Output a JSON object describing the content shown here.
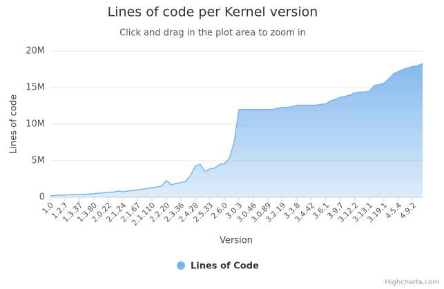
{
  "chart_data": {
    "type": "area",
    "title": "Lines of code per Kernel version",
    "subtitle": "Click and drag in the plot area to zoom in",
    "x_label": "Version",
    "y_label": "Lines of code",
    "credit": "Highcharts.com",
    "categories": [
      "1.0",
      null,
      null,
      "1.2.7",
      null,
      null,
      "1.3.37",
      null,
      null,
      "1.3.80",
      null,
      null,
      "2.0.22",
      null,
      null,
      "2.1.24",
      null,
      null,
      "2.1.67",
      null,
      null,
      "2.1.110",
      null,
      null,
      "2.2.20",
      null,
      null,
      "2.3.36",
      null,
      null,
      "2.4.28",
      null,
      null,
      "2.5.33",
      null,
      null,
      "2.6.0",
      null,
      null,
      "3.0.3",
      null,
      null,
      "3.0.46",
      null,
      null,
      "3.0.89",
      null,
      null,
      "3.2.19",
      null,
      null,
      "3.3.8",
      null,
      null,
      "3.4.42",
      null,
      null,
      "3.6.1",
      null,
      null,
      "3.9.7",
      null,
      null,
      "3.12.2",
      null,
      null,
      "3.13.1",
      null,
      null,
      "3.19.1",
      null,
      null,
      "4.5.4",
      null,
      null,
      "4.9.2",
      null,
      null
    ],
    "series": [
      {
        "name": "Lines of Code",
        "color": "#7cb5ec",
        "values": [
          200000,
          250000,
          300000,
          300000,
          350000,
          350000,
          400000,
          400000,
          450000,
          500000,
          550000,
          600000,
          700000,
          700000,
          850000,
          750000,
          850000,
          950000,
          1000000,
          1100000,
          1200000,
          1300000,
          1400000,
          1500000,
          2300000,
          1700000,
          1900000,
          2000000,
          2200000,
          3000000,
          4300000,
          4500000,
          3500000,
          3900000,
          4000000,
          4500000,
          4600000,
          5300000,
          7500000,
          12000000,
          12000000,
          12000000,
          12000000,
          12000000,
          12000000,
          12000000,
          12000000,
          12200000,
          12300000,
          12300000,
          12400000,
          12600000,
          12600000,
          12600000,
          12600000,
          12600000,
          12700000,
          12800000,
          13200000,
          13400000,
          13700000,
          13800000,
          14000000,
          14300000,
          14400000,
          14400000,
          14500000,
          15300000,
          15400000,
          15600000,
          16200000,
          16900000,
          17200000,
          17500000,
          17700000,
          17900000,
          18000000,
          18300000
        ]
      }
    ],
    "ylim": [
      0,
      20000000
    ],
    "yticks": [
      0,
      {
        "value": 5000000,
        "label": "5M"
      },
      {
        "value": 10000000,
        "label": "10M"
      },
      {
        "value": 15000000,
        "label": "15M"
      },
      {
        "value": 20000000,
        "label": "20M"
      }
    ],
    "grid": true
  }
}
